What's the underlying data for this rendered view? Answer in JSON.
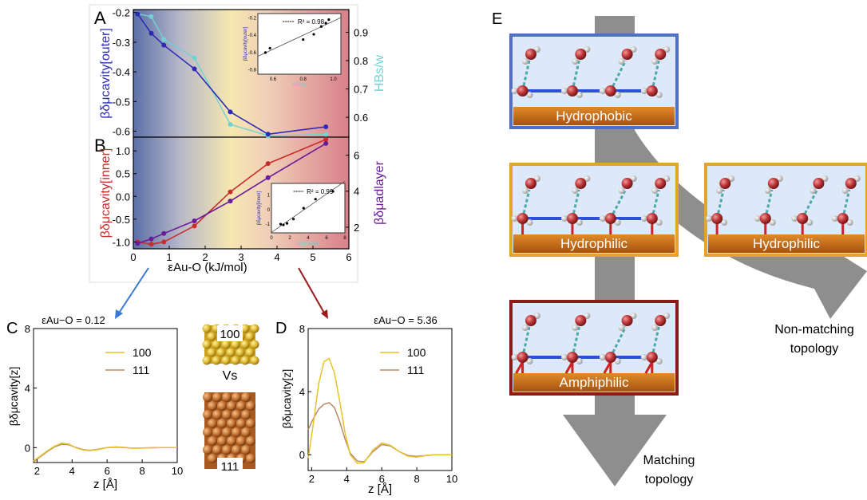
{
  "panels": {
    "A": {
      "letter": "A"
    },
    "B": {
      "letter": "B"
    },
    "C": {
      "letter": "C"
    },
    "D": {
      "letter": "D"
    },
    "E": {
      "letter": "E"
    }
  },
  "colors": {
    "outer": "#2b2bb8",
    "hbs": "#6fd3d3",
    "inner": "#cc2b2b",
    "adlayer": "#6a1b9a",
    "c100": "#e8c22a",
    "c111": "#b98a6a",
    "arrowBlue": "#3a7bd5",
    "arrowRed": "#9b1b1b",
    "boxBlue": "#4f6fc4",
    "boxGold": "#e0a52a",
    "boxRed": "#8b1a1a",
    "gold": "#c8761a"
  },
  "chart_data": [
    {
      "panel": "A",
      "type": "line",
      "xlim": [
        0,
        6
      ],
      "ylim": [
        -0.62,
        -0.19
      ],
      "y2lim": [
        0.53,
        0.98
      ],
      "yticks": [
        "-0.2",
        "-0.3",
        "-0.4",
        "-0.5",
        "-0.6"
      ],
      "y2ticks": [
        "0.9",
        "0.8",
        "0.7",
        "0.6"
      ],
      "ylabel": "βδμcavity[outer]",
      "y2label": "HBs/w",
      "series": [
        {
          "key": "outer",
          "x": [
            0.12,
            0.5,
            0.85,
            1.7,
            2.7,
            3.75,
            5.36
          ],
          "y": [
            -0.205,
            -0.27,
            -0.31,
            -0.39,
            -0.535,
            -0.61,
            -0.585
          ]
        },
        {
          "key": "hbs",
          "x": [
            0.12,
            0.5,
            0.85,
            1.7,
            2.7,
            3.75,
            5.36
          ],
          "y": [
            0.965,
            0.955,
            0.875,
            0.81,
            0.575,
            0.535,
            0.54
          ]
        }
      ],
      "inset": {
        "r2": "R² = 0.98",
        "xlabel": "HBs/w",
        "ylabel": "βδμcavity[outer]",
        "xticks": [
          "0.6",
          "0.8",
          "1.0"
        ],
        "yticks": [
          "-0.2",
          "-0.4",
          "-0.6",
          "-0.8"
        ],
        "points": [
          [
            0.55,
            -0.6
          ],
          [
            0.58,
            -0.55
          ],
          [
            0.8,
            -0.45
          ],
          [
            0.87,
            -0.39
          ],
          [
            0.92,
            -0.3
          ],
          [
            0.95,
            -0.26
          ],
          [
            0.97,
            -0.22
          ]
        ]
      }
    },
    {
      "panel": "B",
      "type": "line",
      "xlim": [
        0,
        6
      ],
      "ylim": [
        -1.15,
        1.3
      ],
      "y2lim": [
        0.8,
        7.0
      ],
      "xticks": [
        "0",
        "1",
        "2",
        "3",
        "4",
        "5",
        "6"
      ],
      "yticks": [
        "1.0",
        "0.5",
        "0.0",
        "-0.5",
        "-1.0"
      ],
      "y2ticks": [
        "6",
        "4",
        "2"
      ],
      "xlabel": "εAu-O (kJ/mol)",
      "ylabel": "βδμcavity[inner]",
      "y2label": "βδμadlayer",
      "series": [
        {
          "key": "inner",
          "x": [
            0.12,
            0.5,
            0.85,
            1.7,
            2.7,
            3.75,
            5.36
          ],
          "y": [
            -1.0,
            -1.05,
            -1.0,
            -0.65,
            0.1,
            0.72,
            1.25
          ]
        },
        {
          "key": "adlayer",
          "x": [
            0.12,
            0.5,
            0.85,
            1.7,
            2.7,
            3.75,
            5.36
          ],
          "y": [
            1.1,
            1.35,
            1.65,
            2.35,
            3.45,
            4.75,
            6.65
          ]
        }
      ],
      "inset": {
        "r2": "R² = 0.99",
        "xlabel": "βδμadlayer",
        "ylabel": "βδμcavity[inner]",
        "xticks": [
          "0",
          "2",
          "4",
          "6",
          "8"
        ],
        "yticks": [
          "1",
          "0",
          "-1"
        ],
        "points": [
          [
            1.0,
            -1.0
          ],
          [
            1.3,
            -1.05
          ],
          [
            1.7,
            -0.95
          ],
          [
            2.4,
            -0.65
          ],
          [
            3.5,
            0.1
          ],
          [
            4.8,
            0.72
          ],
          [
            6.7,
            1.25
          ]
        ]
      }
    },
    {
      "panel": "C",
      "type": "line",
      "title": "εAu−O = 0.12",
      "xlim": [
        1.8,
        10
      ],
      "ylim": [
        -1.0,
        8
      ],
      "xticks": [
        "2",
        "4",
        "6",
        "8",
        "10"
      ],
      "yticks": [
        "8",
        "4",
        "0"
      ],
      "xlabel": "z [Å]",
      "ylabel": "βδμcavity[z]",
      "legend": [
        "100",
        "111"
      ],
      "series": [
        {
          "key": "c100",
          "x": [
            1.8,
            2.2,
            2.6,
            3.0,
            3.4,
            3.8,
            4.2,
            4.6,
            5.0,
            5.5,
            6.0,
            6.5,
            7.0,
            7.5,
            8.0,
            9.0,
            10.0
          ],
          "y": [
            -0.9,
            -0.55,
            -0.2,
            0.1,
            0.3,
            0.25,
            0.0,
            -0.15,
            -0.2,
            -0.12,
            0.0,
            0.05,
            0.02,
            -0.05,
            -0.03,
            0.0,
            0.0
          ]
        },
        {
          "key": "c111",
          "x": [
            1.8,
            2.2,
            2.6,
            3.0,
            3.4,
            3.8,
            4.2,
            4.6,
            5.0,
            5.5,
            6.0,
            6.5,
            7.0,
            7.5,
            8.0,
            9.0,
            10.0
          ],
          "y": [
            -0.95,
            -0.6,
            -0.25,
            0.05,
            0.22,
            0.2,
            0.02,
            -0.12,
            -0.18,
            -0.1,
            0.0,
            0.03,
            0.0,
            -0.04,
            -0.02,
            0.0,
            0.0
          ]
        }
      ]
    },
    {
      "panel": "D",
      "type": "line",
      "title": "εAu−O = 5.36",
      "xlim": [
        1.8,
        10
      ],
      "ylim": [
        -1.0,
        8
      ],
      "xticks": [
        "2",
        "4",
        "6",
        "8",
        "10"
      ],
      "yticks": [
        "8",
        "4",
        "0"
      ],
      "xlabel": "z [Å]",
      "ylabel": "βδμcavity[z]",
      "legend": [
        "100",
        "111"
      ],
      "series": [
        {
          "key": "c100",
          "x": [
            1.8,
            2.1,
            2.4,
            2.7,
            3.0,
            3.3,
            3.6,
            3.9,
            4.2,
            4.6,
            5.0,
            5.5,
            6.0,
            6.5,
            7.0,
            7.5,
            8.0,
            8.5,
            9.0,
            10.0
          ],
          "y": [
            -0.2,
            2.0,
            4.5,
            5.9,
            6.1,
            5.2,
            3.4,
            1.4,
            0.0,
            -0.55,
            -0.5,
            0.3,
            0.75,
            0.6,
            0.2,
            -0.1,
            -0.15,
            -0.05,
            0.0,
            0.0
          ]
        },
        {
          "key": "c111",
          "x": [
            1.8,
            2.1,
            2.4,
            2.7,
            3.0,
            3.3,
            3.6,
            3.9,
            4.2,
            4.6,
            5.0,
            5.5,
            6.0,
            6.5,
            7.0,
            7.5,
            8.0,
            8.5,
            9.0,
            10.0
          ],
          "y": [
            1.6,
            2.3,
            2.9,
            3.2,
            3.3,
            3.0,
            2.1,
            1.0,
            0.1,
            -0.4,
            -0.45,
            0.2,
            0.65,
            0.55,
            0.2,
            -0.05,
            -0.1,
            -0.05,
            0.0,
            0.0
          ]
        }
      ]
    }
  ],
  "surfaces": {
    "top": "100",
    "vs": "Vs",
    "bottom": "111"
  },
  "schematic": {
    "boxes": [
      {
        "label": "Hydrophobic"
      },
      {
        "label": "Hydrophilic"
      },
      {
        "label": "Hydrophilic"
      },
      {
        "label": "Amphiphilic"
      }
    ],
    "nonMatching": [
      "Non-matching",
      "topology"
    ],
    "matching": [
      "Matching",
      "topology"
    ]
  }
}
